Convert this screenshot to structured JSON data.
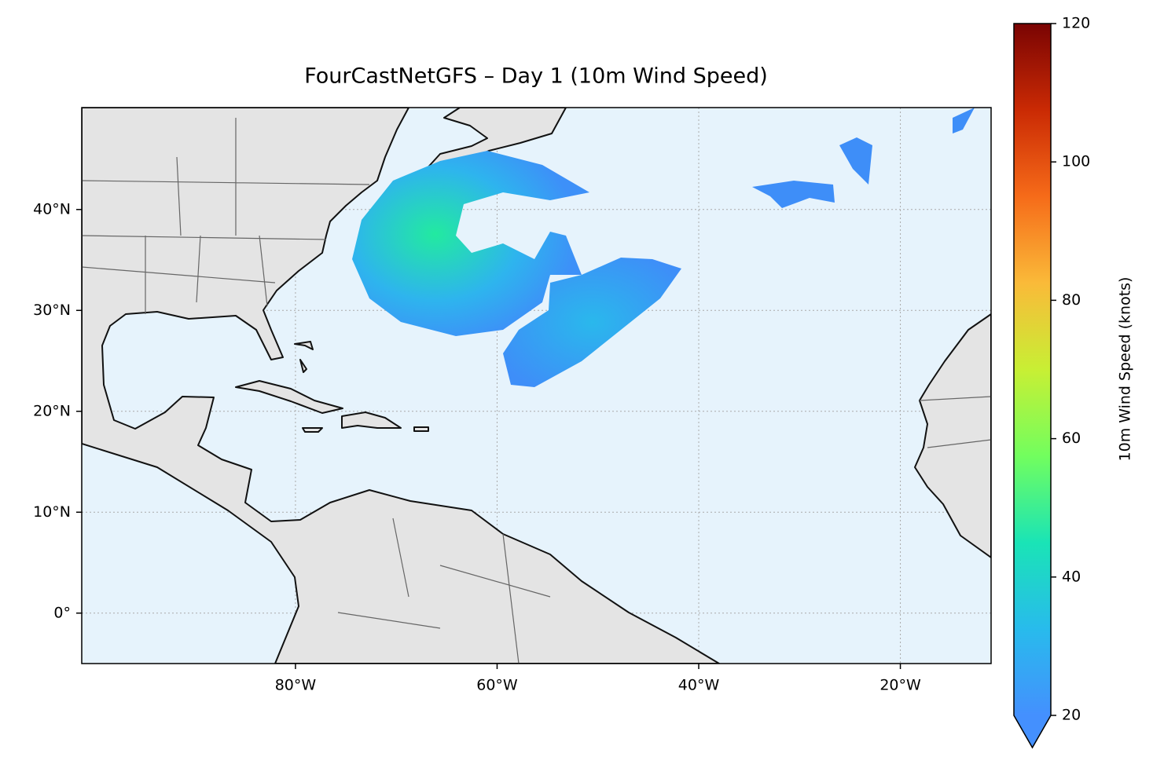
{
  "chart_data": {
    "type": "map",
    "title": "FourCastNetGFS – Day 1 (10m Wind Speed)",
    "xlim": [
      -101.2,
      -11
    ],
    "ylim": [
      -5,
      50.1
    ],
    "xticks": [
      {
        "value": -80,
        "label": "80°W"
      },
      {
        "value": -60,
        "label": "60°W"
      },
      {
        "value": -40,
        "label": "40°W"
      },
      {
        "value": -20,
        "label": "20°W"
      }
    ],
    "yticks": [
      {
        "value": 0,
        "label": "0°"
      },
      {
        "value": 10,
        "label": "10°N"
      },
      {
        "value": 20,
        "label": "20°N"
      },
      {
        "value": 30,
        "label": "30°N"
      },
      {
        "value": 40,
        "label": "40°N"
      }
    ],
    "grid": true,
    "colorbar": {
      "label": "10m Wind Speed (knots)",
      "lim": [
        20,
        120
      ],
      "ticks": [
        20,
        40,
        60,
        80,
        100,
        120
      ],
      "colors": [
        "#4490fe",
        "#28bbec",
        "#1ae4b6",
        "#72fe5e",
        "#c8ef34",
        "#faba39",
        "#f66b19",
        "#ca2a04",
        "#7a0403"
      ]
    }
  }
}
